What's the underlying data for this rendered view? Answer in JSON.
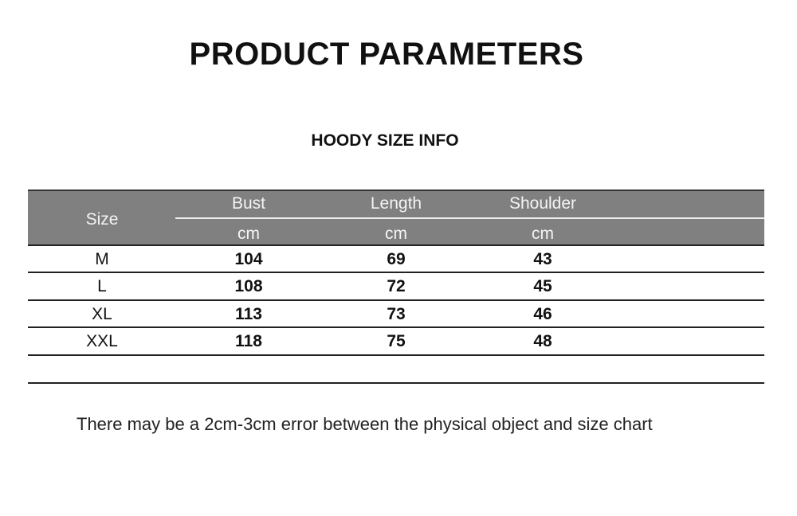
{
  "title": "PRODUCT PARAMETERS",
  "subtitle": "HOODY SIZE INFO",
  "table": {
    "header": {
      "size": "Size",
      "columns": [
        "Bust",
        "Length",
        "Shoulder"
      ],
      "units": [
        "cm",
        "cm",
        "cm"
      ]
    },
    "rows": [
      {
        "size": "M",
        "values": [
          "104",
          "69",
          "43"
        ]
      },
      {
        "size": "L",
        "values": [
          "108",
          "72",
          "45"
        ]
      },
      {
        "size": "XL",
        "values": [
          "113",
          "73",
          "46"
        ]
      },
      {
        "size": "XXL",
        "values": [
          "118",
          "75",
          "48"
        ]
      },
      {
        "size": "",
        "values": [
          "",
          "",
          ""
        ]
      }
    ],
    "header_color": "#808080"
  },
  "note": "There may be a 2cm-3cm error between the physical object and size chart"
}
